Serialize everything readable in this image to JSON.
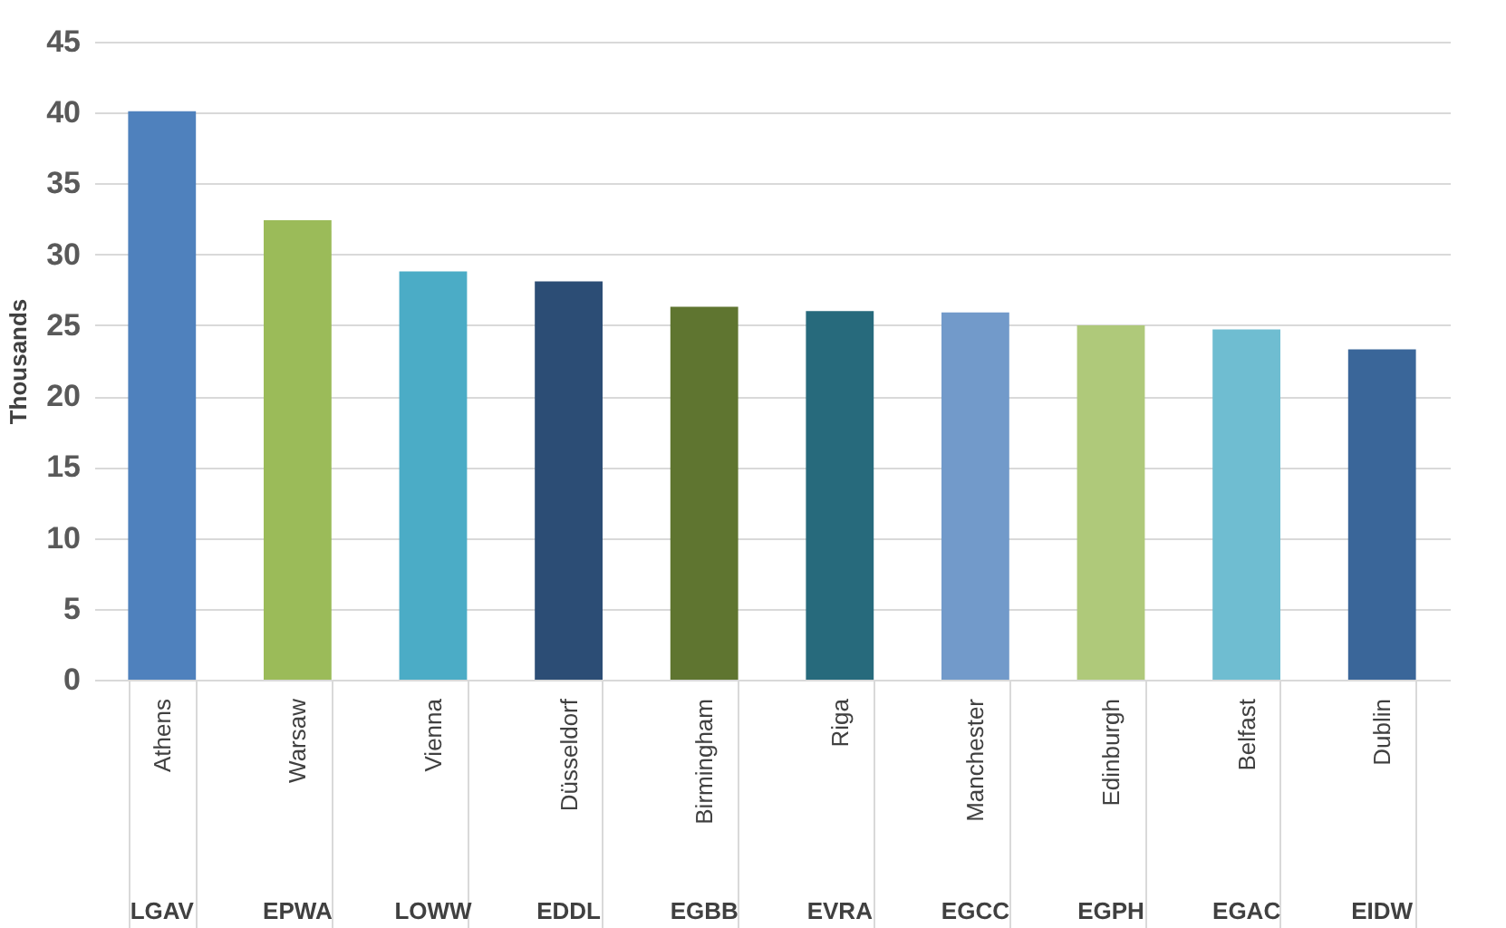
{
  "chart_data": {
    "type": "bar",
    "ylabel": "Thousands",
    "categories": [
      "Athens",
      "Warsaw",
      "Vienna",
      "Düsseldorf",
      "Birmingham",
      "Riga",
      "Manchester",
      "Edinburgh",
      "Belfast",
      "Dublin"
    ],
    "values": [
      40.1,
      32.4,
      28.8,
      28.1,
      26.3,
      26.0,
      25.9,
      25.0,
      24.7,
      23.3
    ],
    "colors": [
      "#4f81bd",
      "#9bbb59",
      "#4bacc6",
      "#2c4d75",
      "#5f7530",
      "#276a7c",
      "#729aca",
      "#afc97a",
      "#6fbdd1",
      "#3a6699"
    ],
    "ylim": [
      0,
      45
    ],
    "yticks": [
      0,
      5,
      10,
      15,
      20,
      25,
      30,
      35,
      40,
      45
    ],
    "grid": "y",
    "annotations": [
      "LGAV",
      "EPWA",
      "LOWW",
      "EDDL",
      "EGBB",
      "EVRA",
      "EGCC",
      "EGPH",
      "EGAC",
      "EIDW"
    ]
  }
}
